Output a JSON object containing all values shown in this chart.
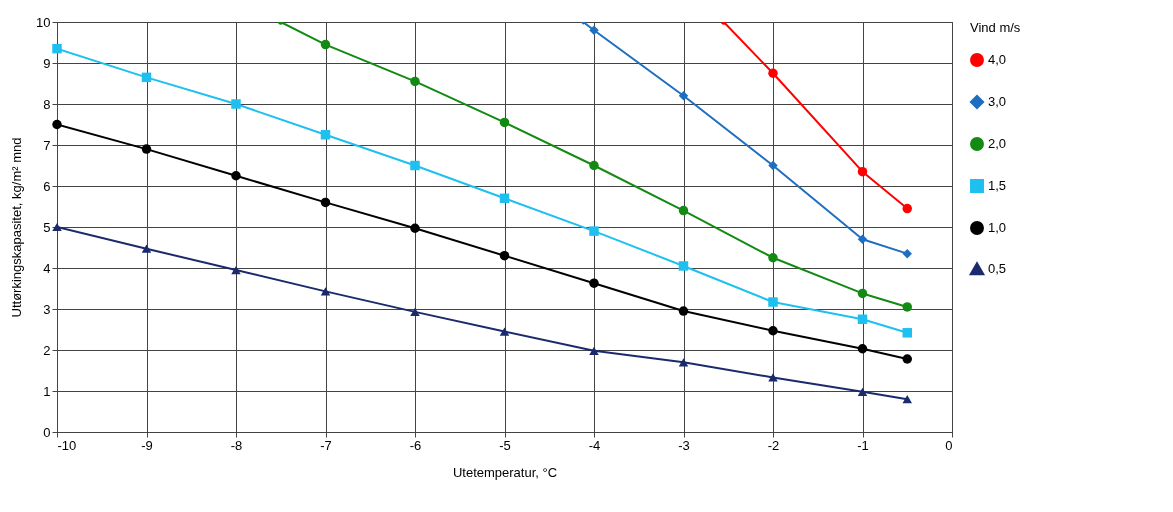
{
  "chart_data": {
    "type": "line",
    "xlabel": "Utetemperatur, °C",
    "ylabel": "Uttørkingskapasitet, kg/m² mnd",
    "legend_title": "Vind m/s",
    "legend": "right",
    "grid": true,
    "xlim": [
      -10,
      0
    ],
    "xticks": [
      -10,
      -9,
      -8,
      -7,
      -6,
      -5,
      -4,
      -3,
      -2,
      -1,
      0
    ],
    "ylim": [
      0,
      10
    ],
    "yticks": [
      0,
      1,
      2,
      3,
      4,
      5,
      6,
      7,
      8,
      9,
      10
    ],
    "series": [
      {
        "name": "4,0",
        "color": "#ff0000",
        "marker": "circle",
        "x": [
          -2.55,
          -2,
          -1,
          -0.5
        ],
        "values": [
          10,
          8.75,
          6.35,
          5.45
        ]
      },
      {
        "name": "3,0",
        "color": "#1f6fc0",
        "marker": "diamond",
        "x": [
          -4.12,
          -4,
          -3,
          -2,
          -1,
          -0.5
        ],
        "values": [
          10,
          9.8,
          8.2,
          6.5,
          4.7,
          4.35
        ]
      },
      {
        "name": "2,0",
        "color": "#138a13",
        "marker": "circle",
        "x": [
          -7.5,
          -7,
          -6,
          -5,
          -4,
          -3,
          -2,
          -1,
          -0.5
        ],
        "values": [
          10,
          9.45,
          8.55,
          7.55,
          6.5,
          5.4,
          4.25,
          3.38,
          3.05
        ]
      },
      {
        "name": "1,5",
        "color": "#1ec0f0",
        "marker": "square",
        "x": [
          -10,
          -9,
          -8,
          -7,
          -6,
          -5,
          -4,
          -3,
          -2,
          -1,
          -0.5
        ],
        "values": [
          9.35,
          8.65,
          8.0,
          7.25,
          6.5,
          5.7,
          4.9,
          4.05,
          3.17,
          2.75,
          2.42
        ]
      },
      {
        "name": "1,0",
        "color": "#000000",
        "marker": "circle",
        "x": [
          -10,
          -9,
          -8,
          -7,
          -6,
          -5,
          -4,
          -3,
          -2,
          -1,
          -0.5
        ],
        "values": [
          7.5,
          6.9,
          6.25,
          5.6,
          4.97,
          4.3,
          3.63,
          2.95,
          2.47,
          2.03,
          1.78
        ]
      },
      {
        "name": "0,5",
        "color": "#1a2a6c",
        "marker": "triangle",
        "x": [
          -10,
          -9,
          -8,
          -7,
          -6,
          -5,
          -4,
          -3,
          -2,
          -1,
          -0.5
        ],
        "values": [
          5.0,
          4.47,
          3.95,
          3.43,
          2.93,
          2.45,
          1.98,
          1.7,
          1.33,
          0.98,
          0.8
        ]
      }
    ]
  }
}
